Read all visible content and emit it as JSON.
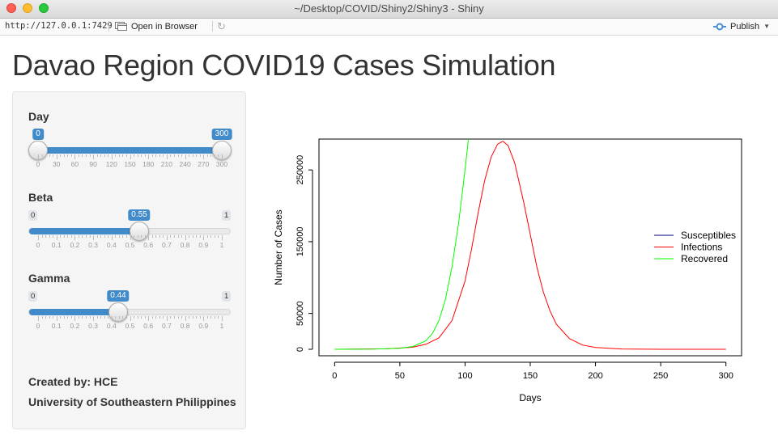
{
  "window": {
    "title": "~/Desktop/COVID/Shiny2/Shiny3 - Shiny"
  },
  "toolbar": {
    "url": "http://127.0.0.1:7429",
    "open_browser": "Open in Browser",
    "publish": "Publish"
  },
  "page": {
    "title": "Davao Region COVID19 Cases Simulation"
  },
  "sliders": [
    {
      "label": "Day",
      "min": 0,
      "max": 300,
      "range": true,
      "value_low": 0,
      "value_high": 300,
      "min_label": "0",
      "max_label": "300",
      "ticks": [
        "0",
        "30",
        "60",
        "90",
        "120",
        "150",
        "180",
        "210",
        "240",
        "270",
        "300"
      ]
    },
    {
      "label": "Beta",
      "min": 0,
      "max": 1,
      "range": false,
      "value": 0.55,
      "value_label": "0.55",
      "min_label": "0",
      "max_label": "1",
      "ticks": [
        "0",
        "0.1",
        "0.2",
        "0.3",
        "0.4",
        "0.5",
        "0.6",
        "0.7",
        "0.8",
        "0.9",
        "1"
      ]
    },
    {
      "label": "Gamma",
      "min": 0,
      "max": 1,
      "range": false,
      "value": 0.44,
      "value_label": "0.44",
      "min_label": "0",
      "max_label": "1",
      "ticks": [
        "0",
        "0.1",
        "0.2",
        "0.3",
        "0.4",
        "0.5",
        "0.6",
        "0.7",
        "0.8",
        "0.9",
        "1"
      ]
    }
  ],
  "credits": {
    "created_by": "Created by: HCE",
    "university": "University of Southeastern Philippines"
  },
  "colors": {
    "accent": "#428bca",
    "susceptibles": "#00008b",
    "infections": "#ff0000",
    "recovered": "#00ff00"
  },
  "chart_data": {
    "type": "line",
    "xlabel": "Days",
    "ylabel": "Number of Cases",
    "xlim": [
      0,
      300
    ],
    "ylim": [
      0,
      290000
    ],
    "x_ticks": [
      0,
      50,
      100,
      150,
      200,
      250,
      300
    ],
    "y_ticks": [
      0,
      50000,
      150000,
      250000
    ],
    "legend_position": "right",
    "series": [
      {
        "name": "Susceptibles",
        "color": "#00008b",
        "x": [],
        "y": []
      },
      {
        "name": "Infections",
        "color": "#ff0000",
        "x": [
          0,
          40,
          60,
          70,
          80,
          90,
          100,
          105,
          110,
          115,
          120,
          125,
          129,
          133,
          138,
          145,
          150,
          155,
          160,
          165,
          170,
          180,
          190,
          200,
          220,
          250,
          300
        ],
        "y": [
          0,
          700,
          3000,
          7000,
          16000,
          40000,
          95000,
          140000,
          190000,
          235000,
          268000,
          286000,
          290000,
          284000,
          260000,
          205000,
          160000,
          115000,
          80000,
          54000,
          35000,
          15000,
          6000,
          2500,
          500,
          50,
          0
        ]
      },
      {
        "name": "Recovered",
        "color": "#00ff00",
        "x": [
          0,
          30,
          50,
          60,
          70,
          75,
          80,
          85,
          90,
          95,
          100,
          103
        ],
        "y": [
          0,
          300,
          1500,
          4000,
          12000,
          22000,
          40000,
          70000,
          115000,
          175000,
          250000,
          300000
        ]
      }
    ]
  }
}
